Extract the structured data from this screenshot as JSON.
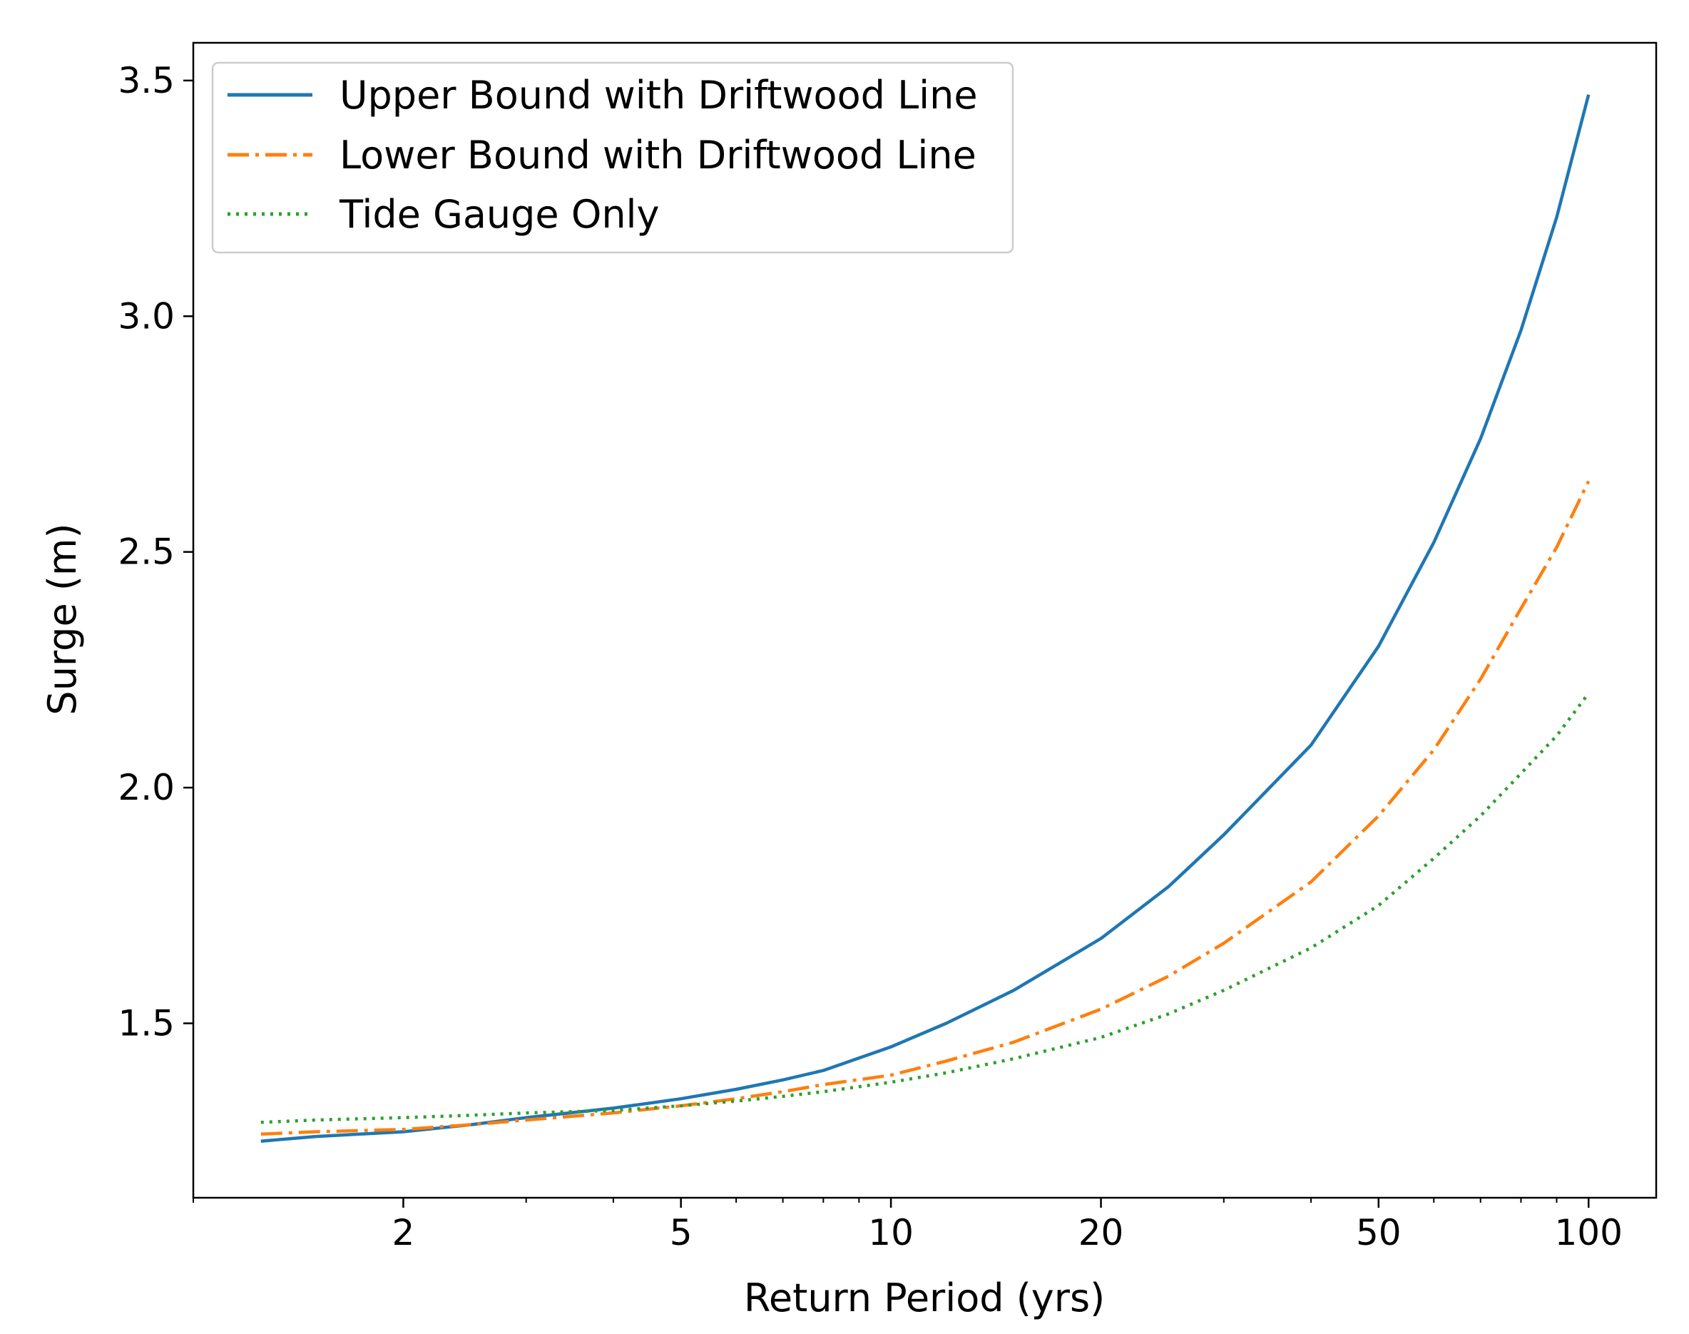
{
  "chart_data": {
    "type": "line",
    "title": "",
    "xlabel": "Return Period (yrs)",
    "ylabel": "Surge (m)",
    "xscale": "log",
    "xlim": [
      1.0,
      125.0
    ],
    "ylim": [
      1.13,
      3.58
    ],
    "x_ticks": [
      2,
      5,
      10,
      20,
      50,
      100
    ],
    "x_tick_labels": [
      "2",
      "5",
      "10",
      "20",
      "50",
      "100"
    ],
    "y_ticks": [
      1.5,
      2.0,
      2.5,
      3.0,
      3.5
    ],
    "y_tick_labels": [
      "1.5",
      "2.0",
      "2.5",
      "3.0",
      "3.5"
    ],
    "grid": false,
    "legend_position": "top-left",
    "x": [
      1.25,
      1.5,
      2,
      2.5,
      3,
      4,
      5,
      6,
      7,
      8,
      10,
      12,
      15,
      20,
      25,
      30,
      40,
      50,
      60,
      70,
      80,
      90,
      100
    ],
    "series": [
      {
        "name": "Upper Bound with Driftwood Line",
        "color": "#1f77b4",
        "style": "solid",
        "values": [
          1.25,
          1.26,
          1.27,
          1.285,
          1.3,
          1.32,
          1.34,
          1.36,
          1.38,
          1.4,
          1.45,
          1.5,
          1.57,
          1.68,
          1.79,
          1.9,
          2.09,
          2.3,
          2.52,
          2.74,
          2.97,
          3.21,
          3.47
        ]
      },
      {
        "name": "Lower Bound with Driftwood Line",
        "color": "#ff7f0e",
        "style": "dashdot",
        "values": [
          1.265,
          1.27,
          1.275,
          1.285,
          1.295,
          1.31,
          1.325,
          1.34,
          1.355,
          1.37,
          1.39,
          1.42,
          1.46,
          1.53,
          1.6,
          1.67,
          1.8,
          1.94,
          2.08,
          2.23,
          2.38,
          2.51,
          2.65
        ]
      },
      {
        "name": "Tide Gauge Only",
        "color": "#2ca02c",
        "style": "dotted",
        "values": [
          1.29,
          1.295,
          1.3,
          1.305,
          1.31,
          1.315,
          1.325,
          1.335,
          1.345,
          1.355,
          1.375,
          1.395,
          1.425,
          1.47,
          1.52,
          1.57,
          1.66,
          1.75,
          1.85,
          1.94,
          2.03,
          2.11,
          2.2
        ]
      }
    ]
  }
}
